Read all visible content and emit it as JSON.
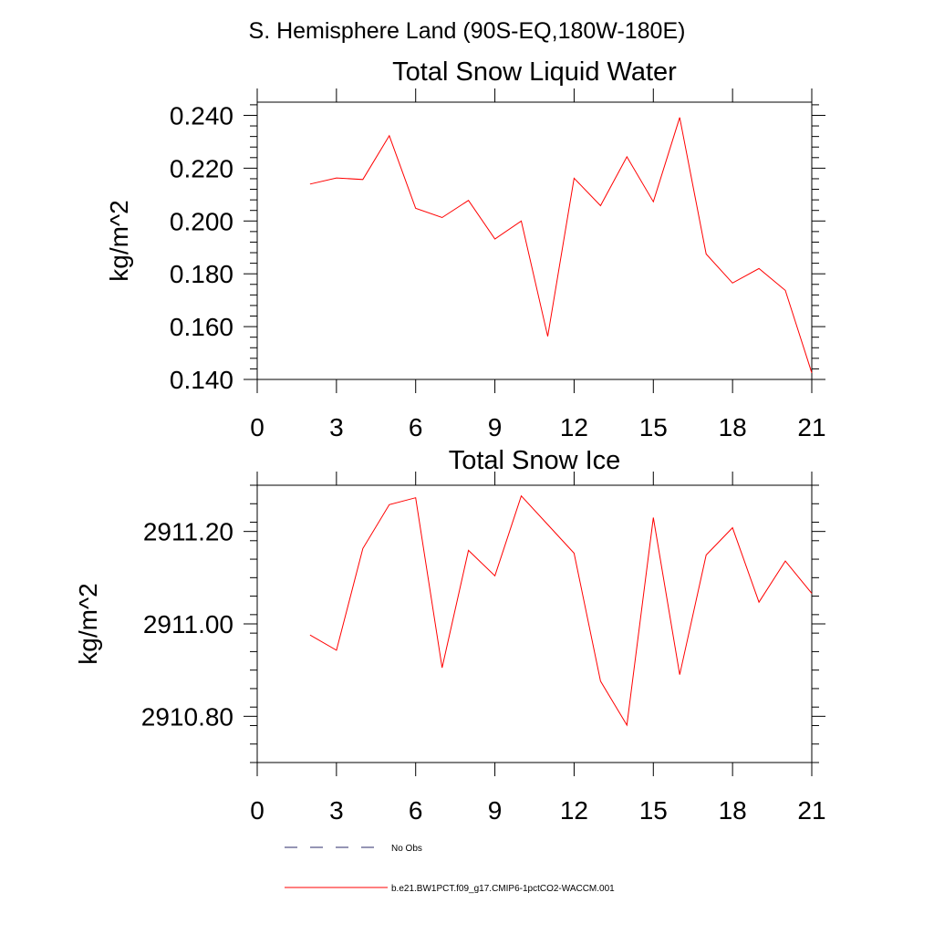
{
  "figure": {
    "title": "S. Hemisphere Land (90S-EQ,180W-180E)",
    "line_color": "#ff0000",
    "obs_line_color": "#2b2b6b"
  },
  "chart_data": [
    {
      "type": "line",
      "title": "Total Snow Liquid Water",
      "xlabel": "",
      "ylabel": "kg/m^2",
      "xlim": [
        0,
        21
      ],
      "ylim": [
        0.14,
        0.245
      ],
      "x_ticks": [
        0,
        3,
        6,
        9,
        12,
        15,
        18,
        21
      ],
      "x_tick_labels": [
        "0",
        "3",
        "6",
        "9",
        "12",
        "15",
        "18",
        "21"
      ],
      "y_ticks": [
        0.14,
        0.16,
        0.18,
        0.2,
        0.22,
        0.24
      ],
      "y_tick_labels": [
        "0.140",
        "0.160",
        "0.180",
        "0.200",
        "0.220",
        "0.240"
      ],
      "grid": false,
      "series": [
        {
          "name": "b.e21.BW1PCT.f09_g17.CMIP6-1pctCO2-WACCM.001",
          "x": [
            2,
            3,
            4,
            5,
            6,
            7,
            8,
            9,
            10,
            11,
            12,
            13,
            14,
            15,
            16,
            17,
            18,
            19,
            20,
            21
          ],
          "values": [
            0.214,
            0.2163,
            0.2157,
            0.2323,
            0.2048,
            0.2013,
            0.2078,
            0.1932,
            0.2,
            0.1563,
            0.2162,
            0.2058,
            0.2243,
            0.2073,
            0.2392,
            0.1875,
            0.1765,
            0.182,
            0.1737,
            0.1425
          ]
        }
      ]
    },
    {
      "type": "line",
      "title": "Total Snow Ice",
      "xlabel": "",
      "ylabel": "kg/m^2",
      "xlim": [
        0,
        21
      ],
      "ylim": [
        2910.7,
        2911.3
      ],
      "x_ticks": [
        0,
        3,
        6,
        9,
        12,
        15,
        18,
        21
      ],
      "x_tick_labels": [
        "0",
        "3",
        "6",
        "9",
        "12",
        "15",
        "18",
        "21"
      ],
      "y_ticks": [
        2910.8,
        2911.0,
        2911.2
      ],
      "y_tick_labels": [
        "2910.80",
        "2911.00",
        "2911.20"
      ],
      "grid": false,
      "series": [
        {
          "name": "b.e21.BW1PCT.f09_g17.CMIP6-1pctCO2-WACCM.001",
          "x": [
            2,
            3,
            4,
            5,
            6,
            7,
            8,
            9,
            10,
            11,
            12,
            13,
            14,
            15,
            16,
            17,
            18,
            19,
            20,
            21
          ],
          "values": [
            2910.976,
            2910.943,
            2911.163,
            2911.258,
            2911.273,
            2910.905,
            2911.159,
            2911.104,
            2911.277,
            2911.215,
            2911.153,
            2910.876,
            2910.781,
            2911.23,
            2910.89,
            2911.149,
            2911.208,
            2911.047,
            2911.136,
            2911.066
          ]
        }
      ]
    }
  ],
  "legend": {
    "placement": "bottom",
    "entries": [
      {
        "label": "No Obs",
        "style": "dashed",
        "color": "#2b2b6b"
      },
      {
        "label": "b.e21.BW1PCT.f09_g17.CMIP6-1pctCO2-WACCM.001",
        "style": "solid",
        "color": "#ff0000"
      }
    ]
  }
}
